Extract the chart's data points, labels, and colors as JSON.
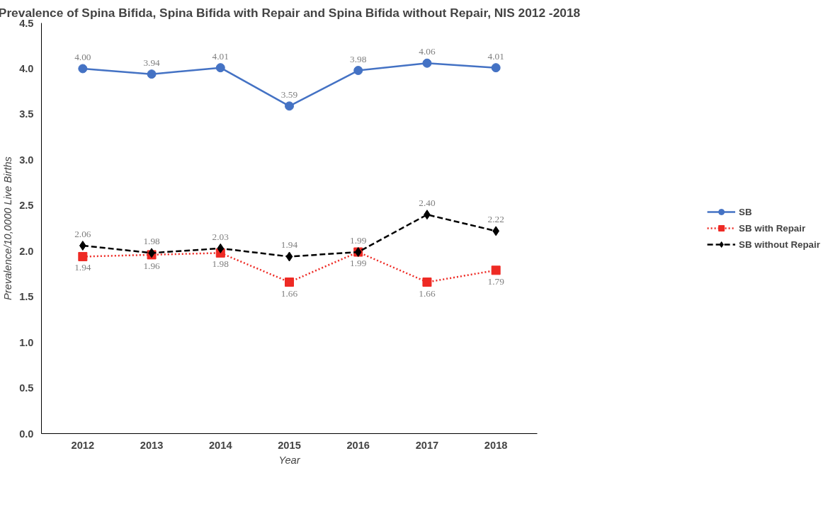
{
  "chart_data": {
    "type": "line",
    "title": "Prevalence of Spina Bifida, Spina Bifida with Repair and Spina Bifida without Repair, NIS 2012 -2018",
    "xlabel": "Year",
    "ylabel": "Prevalence/10,0000 Live Births",
    "categories": [
      "2012",
      "2013",
      "2014",
      "2015",
      "2016",
      "2017",
      "2018"
    ],
    "series": [
      {
        "name": "SB",
        "color": "#4472c4",
        "marker": "circle",
        "line_style": "solid",
        "values": [
          4.0,
          3.94,
          4.01,
          3.59,
          3.98,
          4.06,
          4.01
        ],
        "value_labels": [
          "4.00",
          "3.94",
          "4.01",
          "3.59",
          "3.98",
          "4.06",
          "4.01"
        ]
      },
      {
        "name": "SB with Repair",
        "color": "#ee2a24",
        "marker": "square",
        "line_style": "dotted",
        "values": [
          1.94,
          1.96,
          1.98,
          1.66,
          1.99,
          1.66,
          1.79
        ],
        "value_labels": [
          "1.94",
          "1.96",
          "1.98",
          "1.66",
          "1.99",
          "1.66",
          "1.79"
        ]
      },
      {
        "name": "SB without Repair",
        "color": "#000000",
        "marker": "diamond",
        "line_style": "dashed",
        "values": [
          2.06,
          1.98,
          2.03,
          1.94,
          1.99,
          2.4,
          2.22
        ],
        "value_labels": [
          "2.06",
          "1.98",
          "2.03",
          "1.94",
          "1.99",
          "2.40",
          "2.22"
        ]
      }
    ],
    "ylim": [
      0,
      4.5
    ],
    "yticks": [
      {
        "value": 0,
        "label": "0.0"
      },
      {
        "value": 0.5,
        "label": "0.5"
      },
      {
        "value": 1,
        "label": "1.0"
      },
      {
        "value": 1.5,
        "label": "1.5"
      },
      {
        "value": 2,
        "label": "2.0"
      },
      {
        "value": 2.5,
        "label": "2.5"
      },
      {
        "value": 3,
        "label": "3.0"
      },
      {
        "value": 3.5,
        "label": "3.5"
      },
      {
        "value": 4,
        "label": "4.0"
      },
      {
        "value": 4.5,
        "label": "4.5"
      }
    ],
    "grid": false,
    "legend": "right"
  }
}
